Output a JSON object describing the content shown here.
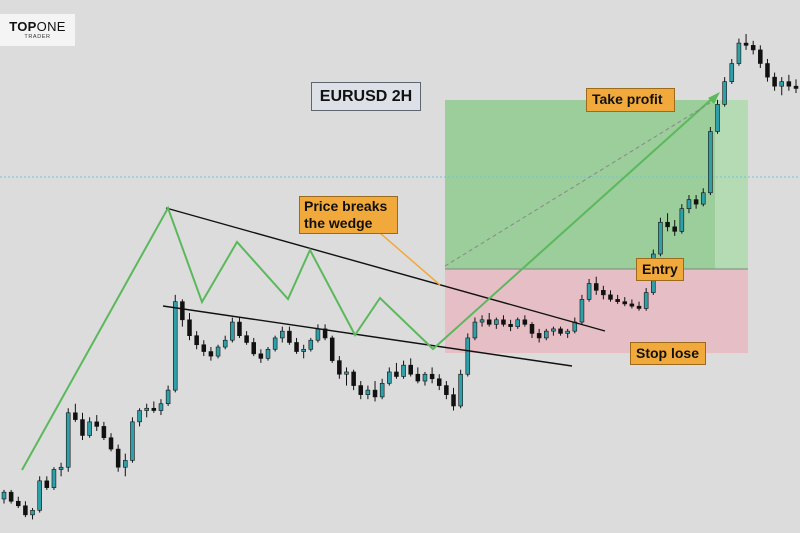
{
  "logo": {
    "brand_bold": "TOP",
    "brand_regular": "ONE",
    "sub": "TRADER"
  },
  "title": "EURUSD 2H",
  "annotations": {
    "breakout": "Price breaks the wedge",
    "take_profit": "Take profit",
    "entry": "Entry",
    "stop_loss": "Stop lose"
  },
  "colors": {
    "background": "#dcdcdc",
    "bull_candle": "#2f9fa8",
    "bear_candle": "#111111",
    "zigzag": "#5cb85c",
    "wedge_lines": "#111111",
    "profit_zone": "#8fcb8f",
    "loss_zone": "#e6bfc6",
    "label_fill": "#f2a93b",
    "dotted_level": "#6fc6d6"
  },
  "chart_data": {
    "type": "candlestick",
    "symbol": "EURUSD",
    "timeframe": "2H",
    "pattern": "falling wedge breakout",
    "candles": [
      [
        1.09,
        1.094,
        1.088,
        1.093
      ],
      [
        1.093,
        1.094,
        1.088,
        1.089
      ],
      [
        1.089,
        1.091,
        1.086,
        1.087
      ],
      [
        1.087,
        1.089,
        1.082,
        1.083
      ],
      [
        1.083,
        1.086,
        1.081,
        1.085
      ],
      [
        1.085,
        1.1,
        1.084,
        1.098
      ],
      [
        1.098,
        1.1,
        1.094,
        1.095
      ],
      [
        1.095,
        1.104,
        1.094,
        1.103
      ],
      [
        1.103,
        1.106,
        1.1,
        1.104
      ],
      [
        1.104,
        1.13,
        1.102,
        1.128
      ],
      [
        1.128,
        1.132,
        1.124,
        1.125
      ],
      [
        1.125,
        1.128,
        1.116,
        1.118
      ],
      [
        1.118,
        1.126,
        1.117,
        1.124
      ],
      [
        1.124,
        1.127,
        1.12,
        1.122
      ],
      [
        1.122,
        1.124,
        1.116,
        1.117
      ],
      [
        1.117,
        1.119,
        1.111,
        1.112
      ],
      [
        1.112,
        1.114,
        1.102,
        1.104
      ],
      [
        1.104,
        1.11,
        1.1,
        1.107
      ],
      [
        1.107,
        1.126,
        1.106,
        1.124
      ],
      [
        1.124,
        1.13,
        1.122,
        1.129
      ],
      [
        1.129,
        1.132,
        1.126,
        1.13
      ],
      [
        1.13,
        1.133,
        1.128,
        1.129
      ],
      [
        1.129,
        1.134,
        1.127,
        1.132
      ],
      [
        1.132,
        1.14,
        1.131,
        1.138
      ],
      [
        1.138,
        1.18,
        1.137,
        1.177
      ],
      [
        1.177,
        1.178,
        1.166,
        1.169
      ],
      [
        1.169,
        1.172,
        1.16,
        1.162
      ],
      [
        1.162,
        1.164,
        1.156,
        1.158
      ],
      [
        1.158,
        1.16,
        1.153,
        1.155
      ],
      [
        1.155,
        1.157,
        1.151,
        1.153
      ],
      [
        1.153,
        1.158,
        1.152,
        1.157
      ],
      [
        1.157,
        1.162,
        1.156,
        1.16
      ],
      [
        1.16,
        1.17,
        1.159,
        1.168
      ],
      [
        1.168,
        1.17,
        1.161,
        1.162
      ],
      [
        1.162,
        1.164,
        1.158,
        1.159
      ],
      [
        1.159,
        1.161,
        1.153,
        1.154
      ],
      [
        1.154,
        1.156,
        1.15,
        1.152
      ],
      [
        1.152,
        1.157,
        1.151,
        1.156
      ],
      [
        1.156,
        1.162,
        1.155,
        1.161
      ],
      [
        1.161,
        1.166,
        1.159,
        1.164
      ],
      [
        1.164,
        1.166,
        1.158,
        1.159
      ],
      [
        1.159,
        1.161,
        1.154,
        1.155
      ],
      [
        1.155,
        1.158,
        1.152,
        1.156
      ],
      [
        1.156,
        1.161,
        1.155,
        1.16
      ],
      [
        1.16,
        1.167,
        1.159,
        1.165
      ],
      [
        1.165,
        1.167,
        1.16,
        1.161
      ],
      [
        1.161,
        1.162,
        1.15,
        1.151
      ],
      [
        1.151,
        1.153,
        1.143,
        1.145
      ],
      [
        1.145,
        1.148,
        1.14,
        1.146
      ],
      [
        1.146,
        1.147,
        1.138,
        1.14
      ],
      [
        1.14,
        1.142,
        1.134,
        1.136
      ],
      [
        1.136,
        1.14,
        1.134,
        1.138
      ],
      [
        1.138,
        1.142,
        1.133,
        1.135
      ],
      [
        1.135,
        1.143,
        1.134,
        1.141
      ],
      [
        1.141,
        1.148,
        1.14,
        1.146
      ],
      [
        1.146,
        1.15,
        1.143,
        1.144
      ],
      [
        1.144,
        1.151,
        1.143,
        1.149
      ],
      [
        1.149,
        1.152,
        1.144,
        1.145
      ],
      [
        1.145,
        1.148,
        1.141,
        1.142
      ],
      [
        1.142,
        1.146,
        1.14,
        1.145
      ],
      [
        1.145,
        1.148,
        1.141,
        1.143
      ],
      [
        1.143,
        1.145,
        1.138,
        1.14
      ],
      [
        1.14,
        1.142,
        1.134,
        1.136
      ],
      [
        1.136,
        1.139,
        1.129,
        1.131
      ],
      [
        1.131,
        1.147,
        1.13,
        1.145
      ],
      [
        1.145,
        1.163,
        1.144,
        1.161
      ],
      [
        1.161,
        1.17,
        1.16,
        1.168
      ],
      [
        1.168,
        1.171,
        1.166,
        1.169
      ],
      [
        1.169,
        1.172,
        1.166,
        1.167
      ],
      [
        1.167,
        1.17,
        1.165,
        1.169
      ],
      [
        1.169,
        1.171,
        1.166,
        1.167
      ],
      [
        1.167,
        1.169,
        1.164,
        1.166
      ],
      [
        1.166,
        1.17,
        1.165,
        1.169
      ],
      [
        1.169,
        1.171,
        1.166,
        1.167
      ],
      [
        1.167,
        1.168,
        1.161,
        1.163
      ],
      [
        1.163,
        1.165,
        1.159,
        1.161
      ],
      [
        1.161,
        1.165,
        1.16,
        1.164
      ],
      [
        1.164,
        1.166,
        1.162,
        1.165
      ],
      [
        1.165,
        1.166,
        1.162,
        1.163
      ],
      [
        1.163,
        1.165,
        1.161,
        1.164
      ],
      [
        1.164,
        1.17,
        1.163,
        1.168
      ],
      [
        1.168,
        1.18,
        1.167,
        1.178
      ],
      [
        1.178,
        1.187,
        1.177,
        1.185
      ],
      [
        1.185,
        1.188,
        1.18,
        1.182
      ],
      [
        1.182,
        1.184,
        1.178,
        1.18
      ],
      [
        1.18,
        1.182,
        1.177,
        1.178
      ],
      [
        1.178,
        1.18,
        1.176,
        1.177
      ],
      [
        1.177,
        1.179,
        1.175,
        1.176
      ],
      [
        1.176,
        1.178,
        1.174,
        1.175
      ],
      [
        1.175,
        1.177,
        1.173,
        1.174
      ],
      [
        1.174,
        1.183,
        1.173,
        1.181
      ],
      [
        1.181,
        1.2,
        1.18,
        1.198
      ],
      [
        1.198,
        1.214,
        1.197,
        1.212
      ],
      [
        1.212,
        1.216,
        1.208,
        1.21
      ],
      [
        1.21,
        1.213,
        1.206,
        1.208
      ],
      [
        1.208,
        1.22,
        1.207,
        1.218
      ],
      [
        1.218,
        1.224,
        1.216,
        1.222
      ],
      [
        1.222,
        1.224,
        1.218,
        1.22
      ],
      [
        1.22,
        1.227,
        1.219,
        1.225
      ],
      [
        1.225,
        1.254,
        1.224,
        1.252
      ],
      [
        1.252,
        1.266,
        1.251,
        1.264
      ],
      [
        1.264,
        1.276,
        1.263,
        1.274
      ],
      [
        1.274,
        1.284,
        1.273,
        1.282
      ],
      [
        1.282,
        1.293,
        1.281,
        1.291
      ],
      [
        1.291,
        1.295,
        1.288,
        1.29
      ],
      [
        1.29,
        1.292,
        1.286,
        1.288
      ],
      [
        1.288,
        1.29,
        1.28,
        1.282
      ],
      [
        1.282,
        1.284,
        1.274,
        1.276
      ],
      [
        1.276,
        1.278,
        1.27,
        1.272
      ],
      [
        1.272,
        1.276,
        1.268,
        1.274
      ],
      [
        1.274,
        1.277,
        1.27,
        1.272
      ],
      [
        1.272,
        1.275,
        1.269,
        1.271
      ]
    ],
    "levels": {
      "take_profit": 1.282,
      "entry": 1.17,
      "stop_loss": 1.122,
      "dotted": 1.23
    },
    "ylim": [
      1.075,
      1.31
    ]
  }
}
